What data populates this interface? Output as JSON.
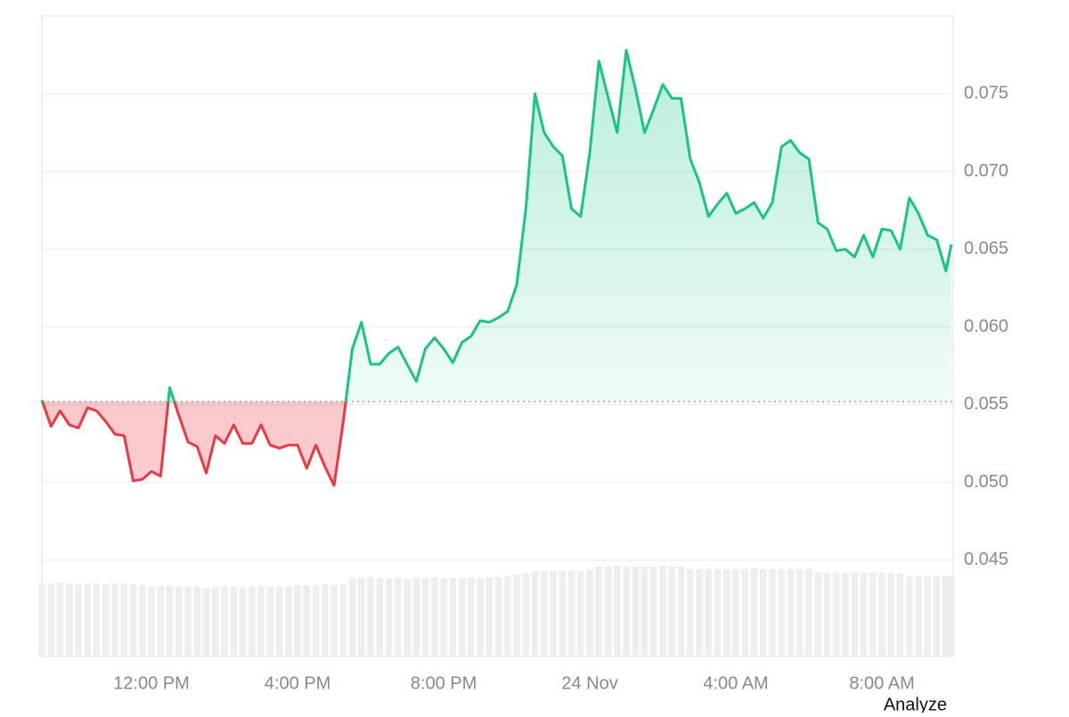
{
  "chart_data": {
    "type": "line",
    "x": [
      9,
      9.25,
      9.5,
      9.75,
      10,
      10.25,
      10.5,
      10.75,
      11,
      11.25,
      11.5,
      11.75,
      12,
      12.25,
      12.5,
      12.75,
      13,
      13.25,
      13.5,
      13.75,
      14,
      14.25,
      14.5,
      14.75,
      15,
      15.25,
      15.5,
      15.75,
      16,
      16.25,
      16.5,
      16.75,
      17,
      17.25,
      17.5,
      17.75,
      18,
      18.25,
      18.5,
      18.75,
      19,
      19.25,
      19.5,
      19.75,
      20,
      20.25,
      20.5,
      20.75,
      21,
      21.25,
      21.5,
      21.75,
      22,
      22.25,
      22.5,
      22.75,
      23,
      23.25,
      23.5,
      23.75,
      24,
      24.25,
      24.5,
      24.75,
      25,
      25.25,
      25.5,
      25.75,
      26,
      26.25,
      26.5,
      26.75,
      27,
      27.25,
      27.5,
      27.75,
      28,
      28.25,
      28.5,
      28.75,
      29,
      29.25,
      29.5,
      29.75,
      30,
      30.25,
      30.5,
      30.75,
      31,
      31.25,
      31.5,
      31.75,
      32,
      32.25,
      32.5,
      32.75,
      33,
      33.25,
      33.5,
      33.75,
      33.9
    ],
    "series": [
      {
        "up_color": "#16c784",
        "down_color": "#ea3943",
        "values": [
          0.0553,
          0.0536,
          0.0546,
          0.0537,
          0.0535,
          0.0548,
          0.0546,
          0.0539,
          0.0531,
          0.053,
          0.0501,
          0.0502,
          0.0507,
          0.0504,
          0.0561,
          0.0543,
          0.0526,
          0.0523,
          0.0506,
          0.053,
          0.0525,
          0.0537,
          0.0525,
          0.0525,
          0.0537,
          0.0524,
          0.0522,
          0.0524,
          0.0524,
          0.0509,
          0.0524,
          0.051,
          0.0498,
          0.0539,
          0.0586,
          0.0603,
          0.0576,
          0.0576,
          0.0583,
          0.0587,
          0.0576,
          0.0565,
          0.0586,
          0.0593,
          0.0586,
          0.0577,
          0.059,
          0.0594,
          0.0604,
          0.0603,
          0.0606,
          0.061,
          0.0627,
          0.0676,
          0.075,
          0.0725,
          0.0716,
          0.071,
          0.0676,
          0.0671,
          0.0712,
          0.0771,
          0.0748,
          0.0725,
          0.0778,
          0.0753,
          0.0725,
          0.074,
          0.0756,
          0.0747,
          0.0747,
          0.0708,
          0.0693,
          0.0671,
          0.0679,
          0.0686,
          0.0673,
          0.0676,
          0.068,
          0.067,
          0.068,
          0.0716,
          0.072,
          0.0712,
          0.0708,
          0.0667,
          0.0663,
          0.0649,
          0.065,
          0.0645,
          0.0659,
          0.0645,
          0.0663,
          0.0662,
          0.065,
          0.0683,
          0.0673,
          0.0659,
          0.0656,
          0.0636,
          0.0653
        ]
      }
    ],
    "baseline": 0.0552,
    "volume": [
      82,
      82,
      83,
      82,
      81,
      82,
      82,
      81,
      82,
      82,
      81,
      80,
      78,
      79,
      79,
      78,
      78,
      78,
      77,
      78,
      79,
      78,
      78,
      78,
      79,
      78,
      78,
      79,
      80,
      80,
      80,
      81,
      80,
      81,
      88,
      88,
      89,
      88,
      88,
      88,
      87,
      88,
      88,
      89,
      88,
      88,
      88,
      88,
      88,
      89,
      89,
      90,
      92,
      93,
      96,
      96,
      96,
      96,
      96,
      96,
      97,
      101,
      101,
      102,
      101,
      101,
      101,
      101,
      102,
      101,
      101,
      98,
      98,
      98,
      98,
      98,
      98,
      98,
      99,
      98,
      98,
      98,
      98,
      98,
      98,
      94,
      94,
      94,
      94,
      94,
      94,
      94,
      94,
      94,
      93,
      90,
      90,
      91,
      90,
      90,
      90
    ],
    "volume_lim": [
      0,
      120
    ],
    "volume_color": "#eceef2",
    "xlim": [
      9,
      33.95
    ],
    "xticks": [
      {
        "value": 12,
        "label": "12:00 PM"
      },
      {
        "value": 16,
        "label": "4:00 PM"
      },
      {
        "value": 20,
        "label": "8:00 PM"
      },
      {
        "value": 24,
        "label": "24 Nov"
      },
      {
        "value": 28,
        "label": "4:00 AM"
      },
      {
        "value": 32,
        "label": "8:00 AM"
      }
    ],
    "ylim": [
      0.0388,
      0.08
    ],
    "yticks": [
      0.045,
      {
        "value": 0.05,
        "label": "0.050"
      },
      0.055,
      {
        "value": 0.06,
        "label": "0.060"
      },
      0.065,
      {
        "value": 0.07,
        "label": "0.070"
      },
      0.075
    ],
    "grid": true,
    "link": "Analyze"
  }
}
